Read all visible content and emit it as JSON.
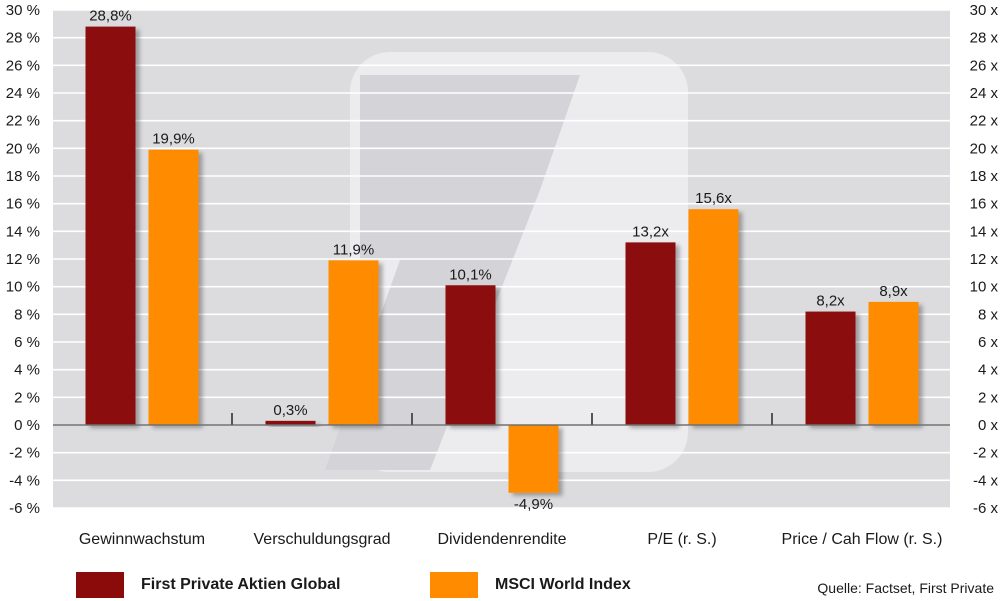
{
  "colors": {
    "series1": "#8b0a0a",
    "series2": "#ff8c00",
    "plot_bg": "#dcdcdf",
    "watermark": "#ececef",
    "zero_line": "#6e6e6e"
  },
  "legend": {
    "items": [
      {
        "name": "First Private Aktien Global",
        "color": "#8b0a0a"
      },
      {
        "name": "MSCI World Index",
        "color": "#ff8c00"
      }
    ]
  },
  "source": "Quelle: Factset, First Private",
  "chart_data": {
    "type": "bar",
    "categories": [
      "Gewinnwachstum",
      "Verschuldungsgrad",
      "Dividendenrendite",
      "P/E (r. S.)",
      "Price / Cah Flow (r. S.)"
    ],
    "series": [
      {
        "name": "First Private Aktien Global",
        "values": [
          28.8,
          0.3,
          10.1,
          13.2,
          8.2
        ],
        "labels": [
          "28,8%",
          "0,3%",
          "10,1%",
          "13,2x",
          "8,2x"
        ]
      },
      {
        "name": "MSCI World Index",
        "values": [
          19.9,
          11.9,
          -4.9,
          15.6,
          8.9
        ],
        "labels": [
          "19,9%",
          "11,9%",
          "-4,9%",
          "15,6x",
          "8,9x"
        ]
      }
    ],
    "ylim": [
      -6,
      30
    ],
    "y_left_ticks": [
      "30 %",
      "28 %",
      "26 %",
      "24 %",
      "22 %",
      "20 %",
      "18 %",
      "16 %",
      "14 %",
      "12 %",
      "10 %",
      "8 %",
      "6 %",
      "4 %",
      "2 %",
      "0 %",
      "-2 %",
      "-4 %",
      "-6 %"
    ],
    "y_right_ticks": [
      "30 x",
      "28 x",
      "26 x",
      "24 x",
      "22 x",
      "20 x",
      "18 x",
      "16 x",
      "14 x",
      "12 x",
      "10 x",
      "8 x",
      "6 x",
      "4 x",
      "2 x",
      "0 x",
      "-2 x",
      "-4 x",
      "-6 x"
    ],
    "grid": true,
    "legend_position": "bottom"
  }
}
